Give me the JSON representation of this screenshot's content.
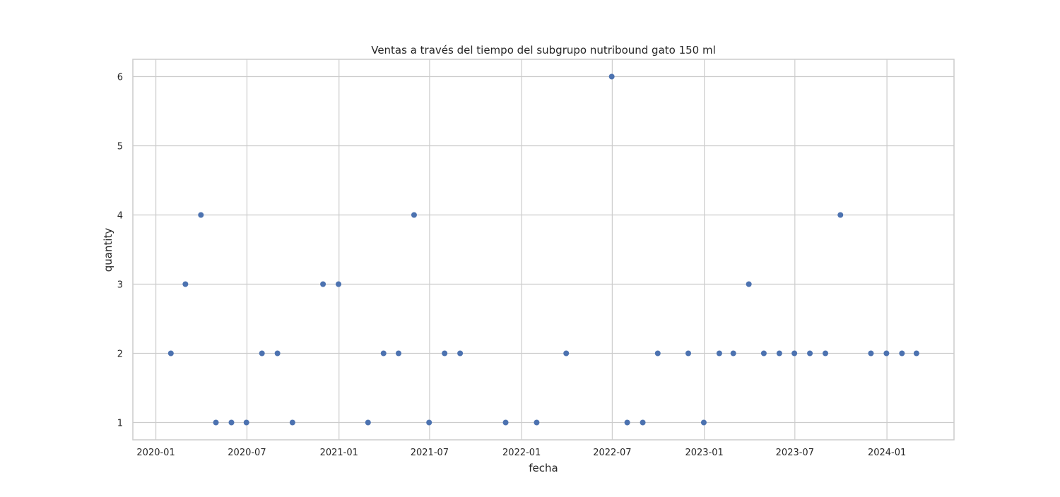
{
  "chart_data": {
    "type": "scatter",
    "title": "Ventas a través del tiempo del subgrupo nutribound gato 150 ml",
    "xlabel": "fecha",
    "ylabel": "quantity",
    "x_axis_type": "date",
    "xlim": [
      "2019-11-16",
      "2024-05-14"
    ],
    "ylim": [
      0.75,
      6.25
    ],
    "xticks": [
      "2020-01",
      "2020-07",
      "2021-01",
      "2021-07",
      "2022-01",
      "2022-07",
      "2023-01",
      "2023-07",
      "2024-01"
    ],
    "xtick_dates": [
      "2020-01-01",
      "2020-07-01",
      "2021-01-01",
      "2021-07-01",
      "2022-01-01",
      "2022-07-01",
      "2023-01-01",
      "2023-07-01",
      "2024-01-01"
    ],
    "yticks": [
      1,
      2,
      3,
      4,
      5,
      6
    ],
    "grid": true,
    "legend": null,
    "colors": {
      "marker": "#4c72b0",
      "grid": "#cccccc",
      "spine": "#cccccc",
      "background": "#ffffff",
      "text": "#262626"
    },
    "points": [
      {
        "x": "2020-01-31",
        "y": 2
      },
      {
        "x": "2020-02-29",
        "y": 3
      },
      {
        "x": "2020-03-31",
        "y": 4
      },
      {
        "x": "2020-04-30",
        "y": 1
      },
      {
        "x": "2020-05-31",
        "y": 1
      },
      {
        "x": "2020-06-30",
        "y": 1
      },
      {
        "x": "2020-07-31",
        "y": 2
      },
      {
        "x": "2020-08-31",
        "y": 2
      },
      {
        "x": "2020-09-30",
        "y": 1
      },
      {
        "x": "2020-11-30",
        "y": 3
      },
      {
        "x": "2020-12-31",
        "y": 3
      },
      {
        "x": "2021-02-28",
        "y": 1
      },
      {
        "x": "2021-03-31",
        "y": 2
      },
      {
        "x": "2021-04-30",
        "y": 2
      },
      {
        "x": "2021-05-31",
        "y": 4
      },
      {
        "x": "2021-06-30",
        "y": 1
      },
      {
        "x": "2021-07-31",
        "y": 2
      },
      {
        "x": "2021-08-31",
        "y": 2
      },
      {
        "x": "2021-11-30",
        "y": 1
      },
      {
        "x": "2022-01-31",
        "y": 1
      },
      {
        "x": "2022-03-31",
        "y": 2
      },
      {
        "x": "2022-06-30",
        "y": 6
      },
      {
        "x": "2022-07-31",
        "y": 1
      },
      {
        "x": "2022-08-31",
        "y": 1
      },
      {
        "x": "2022-09-30",
        "y": 2
      },
      {
        "x": "2022-11-30",
        "y": 2
      },
      {
        "x": "2022-12-31",
        "y": 1
      },
      {
        "x": "2023-01-31",
        "y": 2
      },
      {
        "x": "2023-02-28",
        "y": 2
      },
      {
        "x": "2023-03-31",
        "y": 3
      },
      {
        "x": "2023-04-30",
        "y": 2
      },
      {
        "x": "2023-05-31",
        "y": 2
      },
      {
        "x": "2023-06-30",
        "y": 2
      },
      {
        "x": "2023-07-31",
        "y": 2
      },
      {
        "x": "2023-08-31",
        "y": 2
      },
      {
        "x": "2023-09-30",
        "y": 4
      },
      {
        "x": "2023-11-30",
        "y": 2
      },
      {
        "x": "2023-12-31",
        "y": 2
      },
      {
        "x": "2024-01-31",
        "y": 2
      },
      {
        "x": "2024-02-29",
        "y": 2
      }
    ]
  }
}
